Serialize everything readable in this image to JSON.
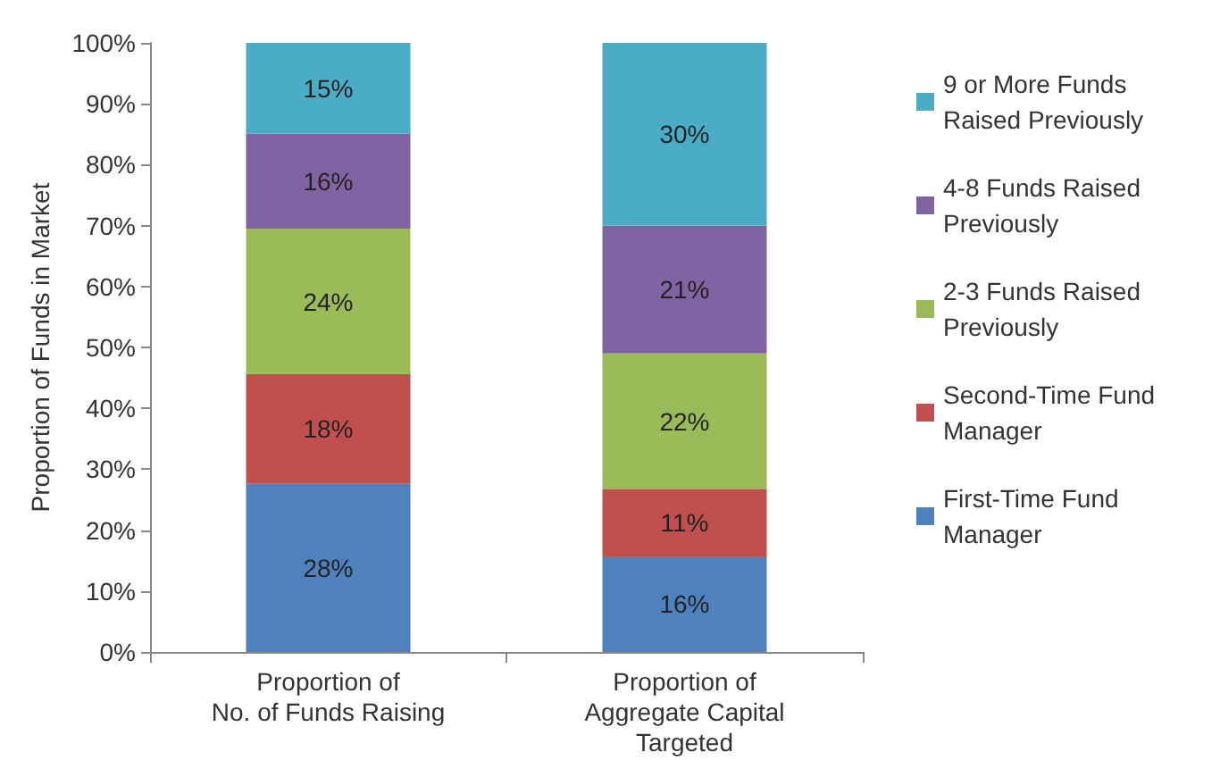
{
  "chart_data": {
    "type": "bar",
    "stacked": true,
    "ylabel": "Proportion of Funds in Market",
    "categories": [
      "Proportion of\nNo. of Funds Raising",
      "Proportion of\nAggregate Capital\nTargeted"
    ],
    "series": [
      {
        "name": "First-Time Fund Manager",
        "color": "#4f81bd",
        "values": [
          27.6,
          15.7
        ],
        "value_labels": [
          "28%",
          "16%"
        ]
      },
      {
        "name": "Second-Time Fund Manager",
        "color": "#c0504d",
        "values": [
          18.0,
          11
        ],
        "value_labels": [
          "18%",
          "11%"
        ]
      },
      {
        "name": "2-3 Funds Raised Previously",
        "color": "#9bbb59",
        "values": [
          23.9,
          22.3
        ],
        "value_labels": [
          "24%",
          "22%"
        ]
      },
      {
        "name": "4-8 Funds Raised Previously",
        "color": "#8064a2",
        "values": [
          15.6,
          21
        ],
        "value_labels": [
          "16%",
          "21%"
        ]
      },
      {
        "name": "9 or More Funds Raised Previously",
        "color": "#4bacc6",
        "values": [
          14.9,
          30
        ],
        "value_labels": [
          "15%",
          "30%"
        ]
      }
    ],
    "ylim": [
      0,
      100
    ],
    "yticks": [
      {
        "value": 0,
        "label": "0%"
      },
      {
        "value": 10,
        "label": "10%"
      },
      {
        "value": 20,
        "label": "20%"
      },
      {
        "value": 30,
        "label": "30%"
      },
      {
        "value": 40,
        "label": "40%"
      },
      {
        "value": 50,
        "label": "50%"
      },
      {
        "value": 60,
        "label": "60%"
      },
      {
        "value": 70,
        "label": "70%"
      },
      {
        "value": 80,
        "label": "80%"
      },
      {
        "value": 90,
        "label": "90%"
      },
      {
        "value": 100,
        "label": "100%"
      }
    ],
    "grid": false,
    "legend": "right"
  }
}
